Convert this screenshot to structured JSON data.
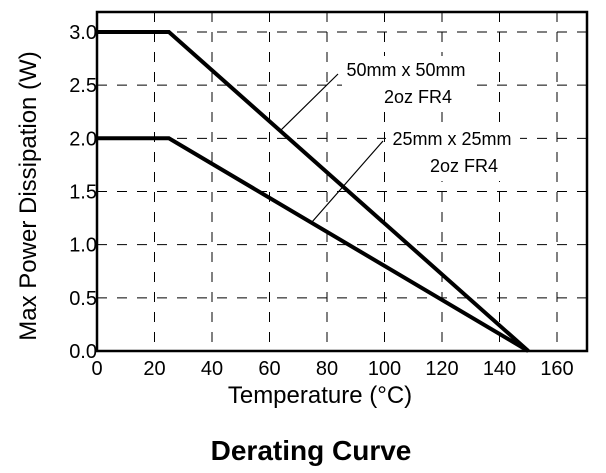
{
  "chart_data": {
    "type": "line",
    "title": "Derating Curve",
    "xlabel": "Temperature (°C)",
    "ylabel": "Max Power Dissipation (W)",
    "xlim": [
      0,
      170
    ],
    "ylim": [
      0,
      3.2
    ],
    "xticks": [
      0,
      20,
      40,
      60,
      80,
      100,
      120,
      140,
      160
    ],
    "yticks": [
      0.0,
      0.5,
      1.0,
      1.5,
      2.0,
      2.5,
      3.0
    ],
    "xtick_labels": [
      "0",
      "20",
      "40",
      "60",
      "80",
      "100",
      "120",
      "140",
      "160"
    ],
    "ytick_labels": [
      "0.0",
      "0.5",
      "1.0",
      "1.5",
      "2.0",
      "2.5",
      "3.0"
    ],
    "grid": true,
    "series": [
      {
        "name": "50mm x 50mm 2oz FR4",
        "label_lines": [
          "50mm x 50mm",
          "2oz FR4"
        ],
        "x": [
          0,
          25,
          150
        ],
        "y": [
          3.0,
          3.0,
          0.0
        ]
      },
      {
        "name": "25mm x 25mm 2oz FR4",
        "label_lines": [
          "25mm x 25mm",
          "2oz FR4"
        ],
        "x": [
          0,
          25,
          150
        ],
        "y": [
          2.0,
          2.0,
          0.0
        ]
      }
    ]
  }
}
